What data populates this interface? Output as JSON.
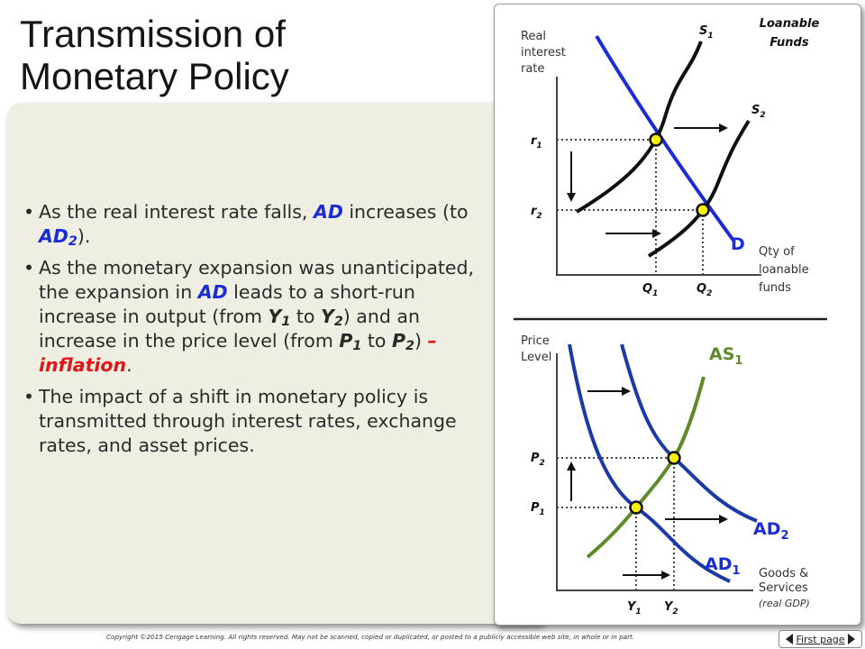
{
  "slide": {
    "title_line1": "Transmission of",
    "title_line2": "Monetary Policy"
  },
  "bullets": [
    {
      "part1": "As the real interest rate falls, ",
      "ad": "AD",
      "part2": " increases (to ",
      "ad2": "AD",
      "ad2_sub": "2",
      "part3": ")."
    },
    {
      "part1": "As the monetary expansion was unanticipated, the expansion in ",
      "ad": "AD",
      "part2": " leads to a short-run increase in output (from ",
      "y1": "Y",
      "y1_sub": "1",
      "part3": " to ",
      "y2": "Y",
      "y2_sub": "2",
      "part4": ") and an increase in the price level (from ",
      "p1": "P",
      "p1_sub": "1",
      "part5": " to ",
      "p2": "P",
      "p2_sub": "2",
      "part6": ") ",
      "inflation": "– inflation",
      "part7": "."
    },
    {
      "text": "The impact of a shift in monetary policy is transmitted through interest rates, exchange rates, and asset prices."
    }
  ],
  "top_graph": {
    "title": "Loanable Funds",
    "y_axis": {
      "line1": "Real",
      "line2": "interest",
      "line3": "rate"
    },
    "x_axis": {
      "line1": "Qty of",
      "line2": "loanable",
      "line3": "funds"
    },
    "s1": "S",
    "s1_sub": "1",
    "s2": "S",
    "s2_sub": "2",
    "d": "D",
    "r1": "r",
    "r1_sub": "1",
    "r2": "r",
    "r2_sub": "2",
    "q1": "Q",
    "q1_sub": "1",
    "q2": "Q",
    "q2_sub": "2"
  },
  "bottom_graph": {
    "y_axis": {
      "line1": "Price",
      "line2": "Level"
    },
    "x_axis": {
      "line1": "Goods &",
      "line2": "Services",
      "line3": "(real GDP)"
    },
    "as1": "AS",
    "as1_sub": "1",
    "ad2": "AD",
    "ad2_sub": "2",
    "ad1": "AD",
    "ad1_sub": "1",
    "p1": "P",
    "p1_sub": "1",
    "p2": "P",
    "p2_sub": "2",
    "y1": "Y",
    "y1_sub": "1",
    "y2": "Y",
    "y2_sub": "2"
  },
  "footer": {
    "copyright": "Copyright ©2015 Cengage Learning. All rights reserved. May not be scanned, copied or duplicated, or posted to a publicly accessible web site, in whole or in part.",
    "first_page": "First page"
  },
  "colors": {
    "demand_blue": "#1a2cd6",
    "supply_black": "#111111",
    "as_green": "#5e8a2a",
    "inflation_red": "#e01515",
    "equilibrium_dot": "#f7ee0a",
    "panel_fill": "#eeeee2"
  }
}
